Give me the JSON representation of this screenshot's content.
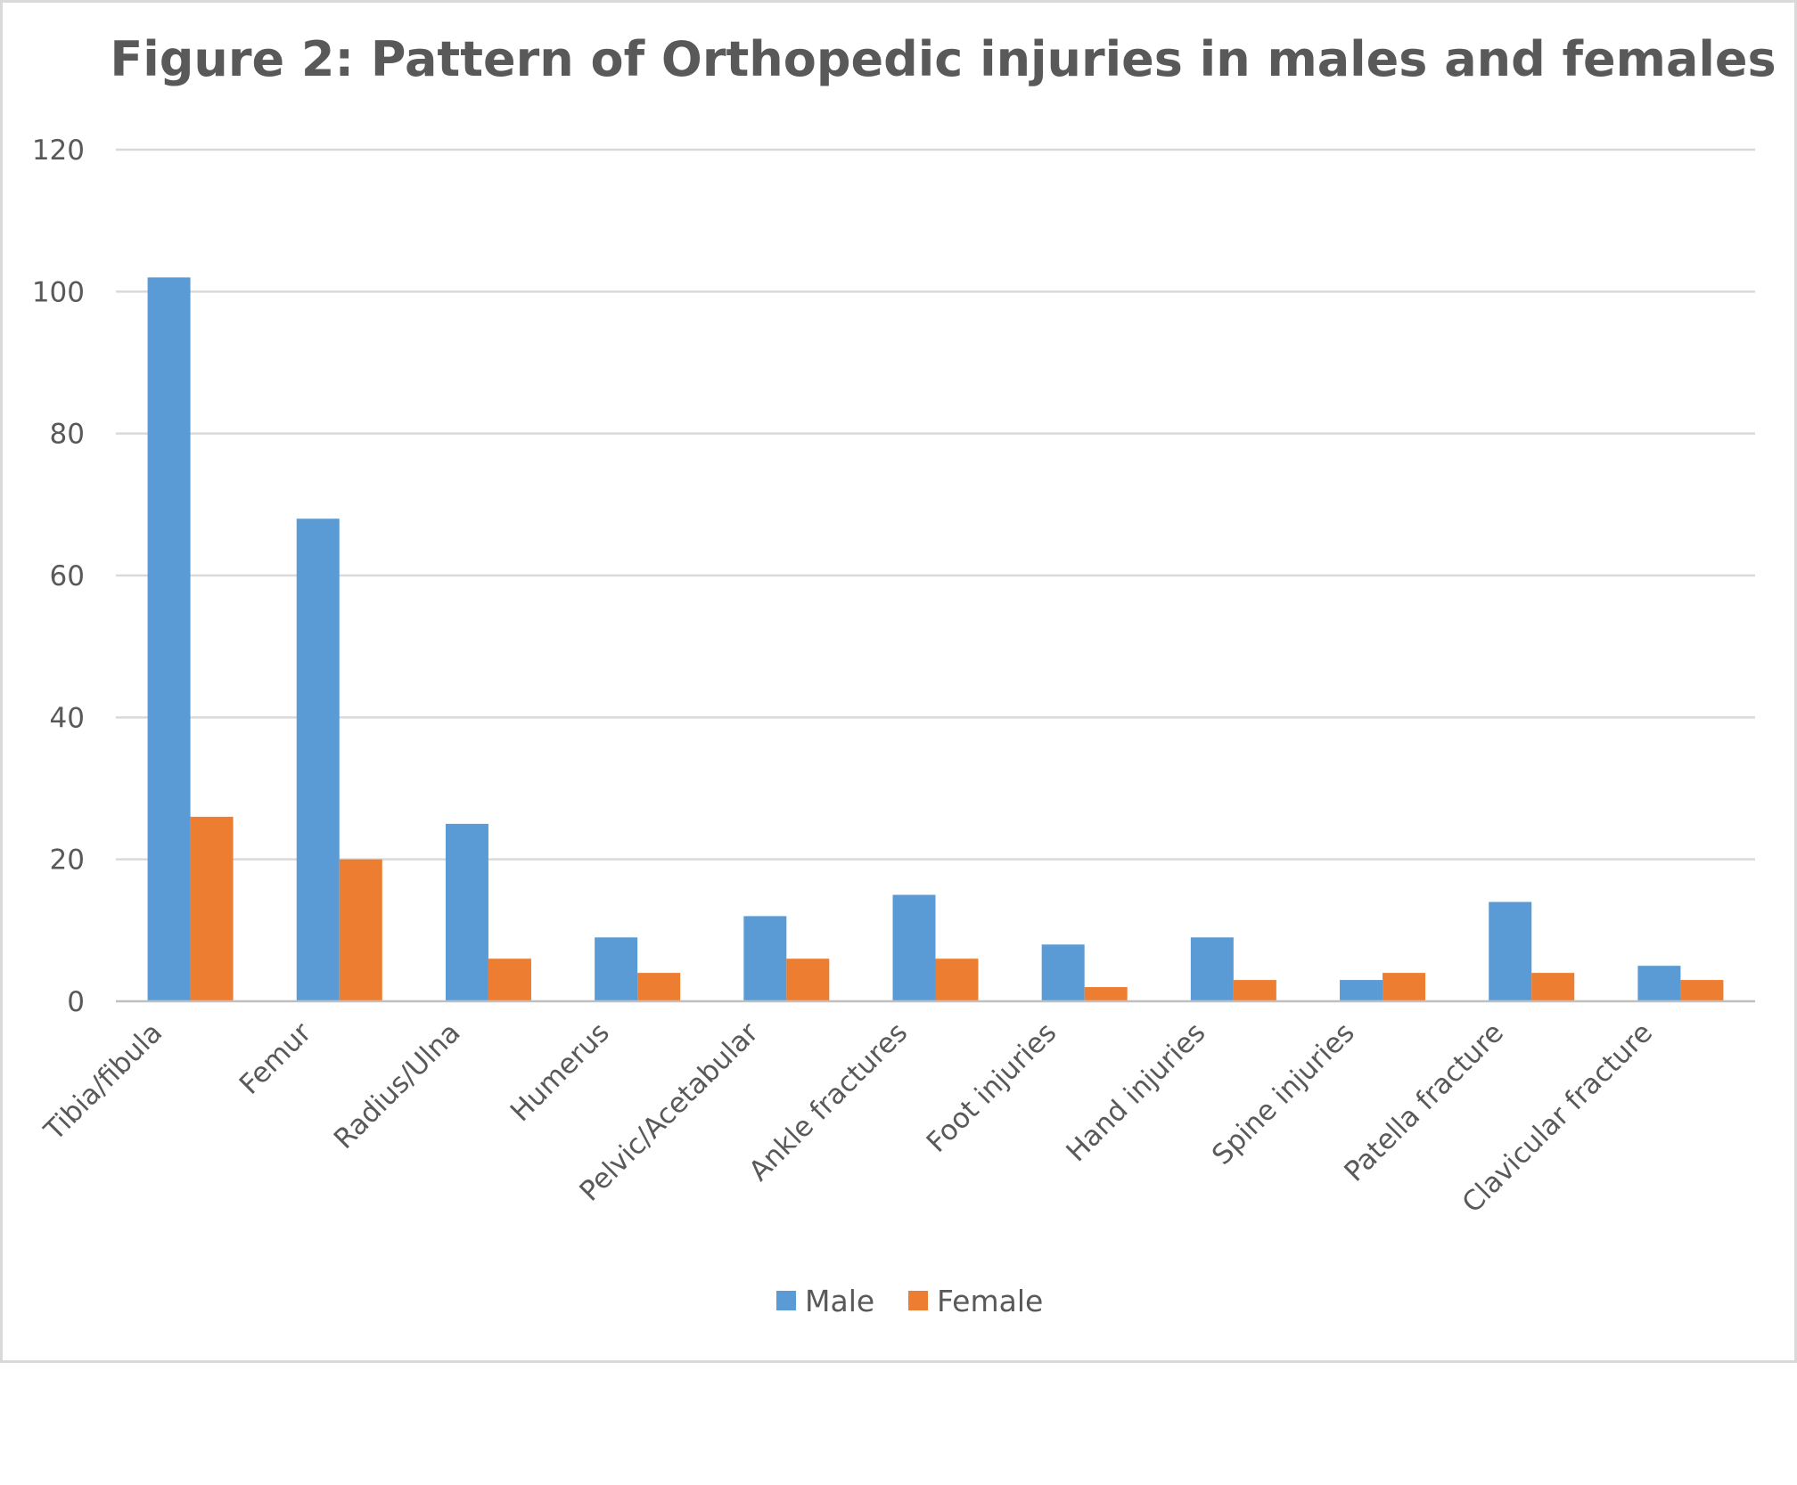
{
  "chart_data": {
    "type": "bar",
    "title": "Figure 2: Pattern of Orthopedic injuries in males and females",
    "xlabel": "",
    "ylabel": "",
    "ylim": [
      0,
      120
    ],
    "yticks": [
      "0",
      "20",
      "40",
      "60",
      "80",
      "100",
      "120"
    ],
    "grid": true,
    "legend_position": "bottom",
    "categories": [
      "Tibia/fibula",
      "Femur",
      "Radius/Ulna",
      "Humerus",
      "Pelvic/Acetabular",
      "Ankle fractures",
      "Foot injuries",
      "Hand injuries",
      "Spine injuries",
      "Patella fracture",
      "Clavicular fracture"
    ],
    "series": [
      {
        "name": "Male",
        "color": "#5b9bd5",
        "values": [
          102,
          68,
          25,
          9,
          12,
          15,
          8,
          9,
          3,
          14,
          5
        ]
      },
      {
        "name": "Female",
        "color": "#ed7d31",
        "values": [
          26,
          20,
          6,
          4,
          6,
          6,
          2,
          3,
          4,
          4,
          3
        ]
      }
    ]
  }
}
